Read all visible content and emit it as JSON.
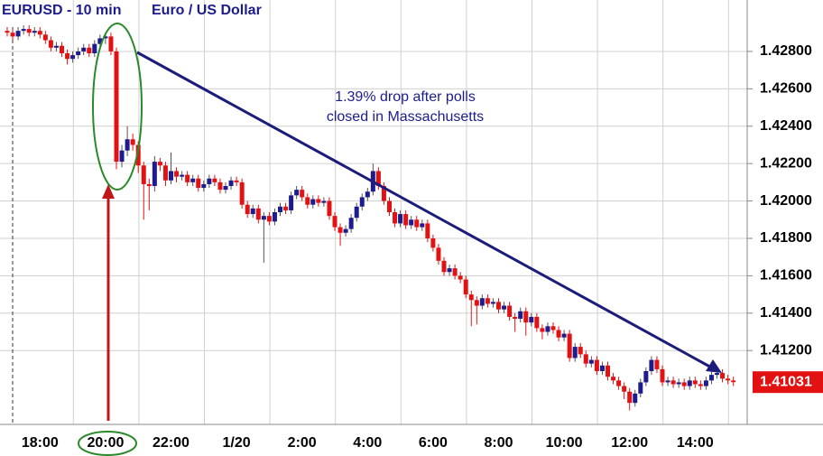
{
  "chart_data": {
    "type": "candlestick",
    "title": "EURUSD - 10 min",
    "subtitle": "Euro / US Dollar",
    "annotation": [
      "1.39% drop after polls",
      "closed in Massachusetts"
    ],
    "up_color": "#1c1c8e",
    "down_color": "#e31212",
    "categories": [
      null,
      null,
      null,
      null,
      null,
      null,
      "18:00",
      null,
      null,
      null,
      null,
      null,
      null,
      null,
      null,
      null,
      null,
      null,
      "20:00",
      null,
      null,
      null,
      null,
      null,
      null,
      null,
      null,
      null,
      null,
      null,
      "22:00",
      null,
      null,
      null,
      null,
      null,
      null,
      null,
      null,
      null,
      null,
      null,
      "1/20",
      null,
      null,
      null,
      null,
      null,
      null,
      null,
      null,
      null,
      null,
      null,
      "2:00",
      null,
      null,
      null,
      null,
      null,
      null,
      null,
      null,
      null,
      null,
      null,
      "4:00",
      null,
      null,
      null,
      null,
      null,
      null,
      null,
      null,
      null,
      null,
      null,
      "6:00",
      null,
      null,
      null,
      null,
      null,
      null,
      null,
      null,
      null,
      null,
      null,
      "8:00",
      null,
      null,
      null,
      null,
      null,
      null,
      null,
      null,
      null,
      null,
      null,
      "10:00",
      null,
      null,
      null,
      null,
      null,
      null,
      null,
      null,
      null,
      null,
      null,
      "12:00",
      null,
      null,
      null,
      null,
      null,
      null,
      null,
      null,
      null,
      null,
      null,
      "14:00",
      null,
      null,
      null,
      null,
      null,
      null,
      null
    ],
    "open": [
      1.4291,
      1.429,
      1.4288,
      1.4291,
      1.4292,
      1.429,
      1.4291,
      1.4289,
      1.4286,
      1.4282,
      1.4283,
      1.4279,
      1.4276,
      1.4278,
      1.428,
      1.4282,
      1.4279,
      1.4284,
      1.4287,
      1.4288,
      1.428,
      1.4221,
      1.4227,
      1.4233,
      1.423,
      1.4219,
      1.4209,
      1.4208,
      1.4221,
      1.4219,
      1.4211,
      1.4216,
      1.4213,
      1.4214,
      1.421,
      1.4212,
      1.4207,
      1.4209,
      1.4212,
      1.421,
      1.4206,
      1.4208,
      1.4211,
      1.421,
      1.4198,
      1.4193,
      1.4196,
      1.419,
      1.4192,
      1.4189,
      1.4194,
      1.4197,
      1.4195,
      1.4203,
      1.4206,
      1.4202,
      1.4198,
      1.4201,
      1.4199,
      1.42,
      1.4192,
      1.4186,
      1.4183,
      1.4185,
      1.4191,
      1.4197,
      1.4202,
      1.4205,
      1.4216,
      1.4208,
      1.42,
      1.4194,
      1.4188,
      1.4193,
      1.4187,
      1.419,
      1.4186,
      1.4188,
      1.418,
      1.4175,
      1.4168,
      1.4162,
      1.4164,
      1.416,
      1.4158,
      1.415,
      1.4147,
      1.4144,
      1.4148,
      1.4145,
      1.4146,
      1.4142,
      1.4144,
      1.4138,
      1.4137,
      1.4141,
      1.4135,
      1.4138,
      1.4132,
      1.413,
      1.4133,
      1.4131,
      1.4127,
      1.4129,
      1.4116,
      1.4122,
      1.4118,
      1.4113,
      1.4115,
      1.4109,
      1.4112,
      1.4106,
      1.4104,
      1.4101,
      1.4098,
      1.4092,
      1.4097,
      1.4103,
      1.4109,
      1.4115,
      1.411,
      1.4103,
      1.4104,
      1.4102,
      1.4103,
      1.4101,
      1.4104,
      1.4102,
      1.4101,
      1.4104,
      1.4107,
      1.4108,
      1.4105,
      1.4104
    ],
    "high": [
      1.4293,
      1.4292,
      1.4293,
      1.4294,
      1.4294,
      1.4293,
      1.4293,
      1.4291,
      1.4288,
      1.4285,
      1.4285,
      1.4281,
      1.428,
      1.4282,
      1.4284,
      1.4284,
      1.4286,
      1.4289,
      1.429,
      1.429,
      1.4282,
      1.423,
      1.424,
      1.4236,
      1.4232,
      1.4221,
      1.4212,
      1.4224,
      1.4223,
      1.4221,
      1.4226,
      1.4218,
      1.4216,
      1.4216,
      1.4214,
      1.4214,
      1.4211,
      1.4214,
      1.4214,
      1.4212,
      1.421,
      1.4213,
      1.4213,
      1.4212,
      1.42,
      1.4198,
      1.4198,
      1.4194,
      1.4194,
      1.4196,
      1.4199,
      1.4199,
      1.4205,
      1.4208,
      1.4208,
      1.4204,
      1.4203,
      1.4203,
      1.4202,
      1.4202,
      1.4194,
      1.4188,
      1.4187,
      1.4193,
      1.4199,
      1.4204,
      1.4207,
      1.422,
      1.4218,
      1.421,
      1.4202,
      1.4196,
      1.4195,
      1.4195,
      1.4192,
      1.4192,
      1.419,
      1.419,
      1.4182,
      1.4177,
      1.417,
      1.4166,
      1.4166,
      1.4162,
      1.416,
      1.4152,
      1.4149,
      1.415,
      1.415,
      1.4148,
      1.4148,
      1.4146,
      1.4146,
      1.414,
      1.4143,
      1.4143,
      1.414,
      1.414,
      1.4134,
      1.4135,
      1.4135,
      1.4133,
      1.4131,
      1.4131,
      1.4124,
      1.4124,
      1.412,
      1.4117,
      1.4117,
      1.4114,
      1.4114,
      1.4108,
      1.4106,
      1.4103,
      1.41,
      1.4099,
      1.4105,
      1.4111,
      1.4117,
      1.4117,
      1.4112,
      1.4106,
      1.4106,
      1.4105,
      1.4105,
      1.4106,
      1.4106,
      1.4104,
      1.4106,
      1.4109,
      1.4111,
      1.411,
      1.4107,
      1.4106
    ],
    "low": [
      1.4288,
      1.4286,
      1.4286,
      1.4289,
      1.4288,
      1.4288,
      1.4287,
      1.4284,
      1.428,
      1.428,
      1.4277,
      1.4273,
      1.4274,
      1.4276,
      1.4278,
      1.4277,
      1.4277,
      1.4282,
      1.4284,
      1.4278,
      1.4217,
      1.4218,
      1.4224,
      1.4227,
      1.4215,
      1.419,
      1.4195,
      1.4205,
      1.4216,
      1.4208,
      1.4209,
      1.421,
      1.4211,
      1.4208,
      1.4208,
      1.4205,
      1.4205,
      1.4207,
      1.4208,
      1.4204,
      1.4204,
      1.4206,
      1.4208,
      1.4196,
      1.4191,
      1.4191,
      1.4188,
      1.4167,
      1.4187,
      1.4187,
      1.4192,
      1.4193,
      1.4193,
      1.4201,
      1.42,
      1.4196,
      1.4196,
      1.4197,
      1.4197,
      1.419,
      1.4184,
      1.4176,
      1.4181,
      1.4183,
      1.4189,
      1.4195,
      1.42,
      1.4203,
      1.4206,
      1.4198,
      1.4192,
      1.4186,
      1.4186,
      1.4185,
      1.4185,
      1.4184,
      1.4184,
      1.4178,
      1.4173,
      1.4166,
      1.416,
      1.416,
      1.4158,
      1.4156,
      1.4148,
      1.4133,
      1.4134,
      1.4142,
      1.4143,
      1.4143,
      1.414,
      1.414,
      1.4136,
      1.413,
      1.4135,
      1.4128,
      1.4133,
      1.413,
      1.4126,
      1.4128,
      1.4129,
      1.4125,
      1.4125,
      1.4114,
      1.4114,
      1.4116,
      1.4111,
      1.4111,
      1.4107,
      1.4107,
      1.4104,
      1.4102,
      1.4099,
      1.4094,
      1.4088,
      1.409,
      1.4095,
      1.4101,
      1.4107,
      1.4108,
      1.4101,
      1.4101,
      1.41,
      1.41,
      1.4099,
      1.4099,
      1.41,
      1.4099,
      1.4099,
      1.4102,
      1.4105,
      1.4103,
      1.4102,
      1.4101
    ],
    "close": [
      1.429,
      1.4288,
      1.4291,
      1.4292,
      1.429,
      1.4291,
      1.4289,
      1.4286,
      1.4282,
      1.4283,
      1.4279,
      1.4276,
      1.4278,
      1.428,
      1.4282,
      1.4279,
      1.4284,
      1.4287,
      1.4288,
      1.428,
      1.4221,
      1.4227,
      1.4233,
      1.423,
      1.4219,
      1.4209,
      1.4208,
      1.4221,
      1.4219,
      1.4211,
      1.4216,
      1.4213,
      1.4214,
      1.421,
      1.4212,
      1.4207,
      1.4209,
      1.4212,
      1.421,
      1.4206,
      1.4208,
      1.4211,
      1.421,
      1.4198,
      1.4193,
      1.4196,
      1.419,
      1.4192,
      1.4189,
      1.4194,
      1.4197,
      1.4195,
      1.4203,
      1.4206,
      1.4202,
      1.4198,
      1.4201,
      1.4199,
      1.42,
      1.4192,
      1.4186,
      1.4183,
      1.4185,
      1.4191,
      1.4197,
      1.4202,
      1.4205,
      1.4216,
      1.4208,
      1.42,
      1.4194,
      1.4188,
      1.4193,
      1.4187,
      1.419,
      1.4186,
      1.4188,
      1.418,
      1.4175,
      1.4168,
      1.4162,
      1.4164,
      1.416,
      1.4158,
      1.415,
      1.4147,
      1.4144,
      1.4148,
      1.4145,
      1.4146,
      1.4142,
      1.4144,
      1.4138,
      1.4137,
      1.4141,
      1.4135,
      1.4138,
      1.4132,
      1.413,
      1.4133,
      1.4131,
      1.4127,
      1.4129,
      1.4116,
      1.4122,
      1.4118,
      1.4113,
      1.4115,
      1.4109,
      1.4112,
      1.4106,
      1.4104,
      1.4101,
      1.4098,
      1.4092,
      1.4097,
      1.4103,
      1.4109,
      1.4115,
      1.411,
      1.4103,
      1.4104,
      1.4102,
      1.4103,
      1.4101,
      1.4104,
      1.4102,
      1.4101,
      1.4104,
      1.4107,
      1.4108,
      1.4105,
      1.4104,
      1.41031
    ],
    "last_price": 1.41031,
    "ylim": [
      1.40805,
      1.43075
    ],
    "yticks": [
      {
        "value": 1.412,
        "label": "1.41200"
      },
      {
        "value": 1.414,
        "label": "1.41400"
      },
      {
        "value": 1.416,
        "label": "1.41600"
      },
      {
        "value": 1.418,
        "label": "1.41800"
      },
      {
        "value": 1.42,
        "label": "1.42000"
      },
      {
        "value": 1.422,
        "label": "1.42200"
      },
      {
        "value": 1.424,
        "label": "1.42400"
      },
      {
        "value": 1.426,
        "label": "1.42600"
      },
      {
        "value": 1.428,
        "label": "1.42800"
      }
    ],
    "grid": true
  }
}
